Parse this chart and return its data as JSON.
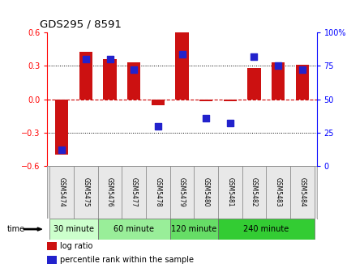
{
  "title": "GDS295 / 8591",
  "samples": [
    "GSM5474",
    "GSM5475",
    "GSM5476",
    "GSM5477",
    "GSM5478",
    "GSM5479",
    "GSM5480",
    "GSM5481",
    "GSM5482",
    "GSM5483",
    "GSM5484"
  ],
  "log_ratio": [
    -0.5,
    0.43,
    0.36,
    0.33,
    -0.05,
    0.6,
    -0.02,
    -0.02,
    0.28,
    0.33,
    0.31
  ],
  "percentile": [
    12,
    80,
    80,
    72,
    30,
    84,
    36,
    32,
    82,
    75,
    72
  ],
  "ylim_left": [
    -0.6,
    0.6
  ],
  "ylim_right": [
    0,
    100
  ],
  "yticks_left": [
    -0.6,
    -0.3,
    0.0,
    0.3,
    0.6
  ],
  "yticks_right": [
    0,
    25,
    50,
    75,
    100
  ],
  "ytick_labels_right": [
    "0",
    "25",
    "50",
    "75",
    "100%"
  ],
  "groups": [
    {
      "label": "30 minute",
      "start": 0,
      "end": 2,
      "color": "#ccffcc"
    },
    {
      "label": "60 minute",
      "start": 2,
      "end": 5,
      "color": "#99ee99"
    },
    {
      "label": "120 minute",
      "start": 5,
      "end": 7,
      "color": "#66dd66"
    },
    {
      "label": "240 minute",
      "start": 7,
      "end": 11,
      "color": "#33cc33"
    }
  ],
  "bar_color": "#cc1111",
  "dot_color": "#2222cc",
  "hline_color": "#cc0000",
  "gridline_color": "#000000",
  "bar_width": 0.55,
  "time_label": "time",
  "legend_log_ratio": "log ratio",
  "legend_percentile": "percentile rank within the sample",
  "background_color": "#ffffff"
}
